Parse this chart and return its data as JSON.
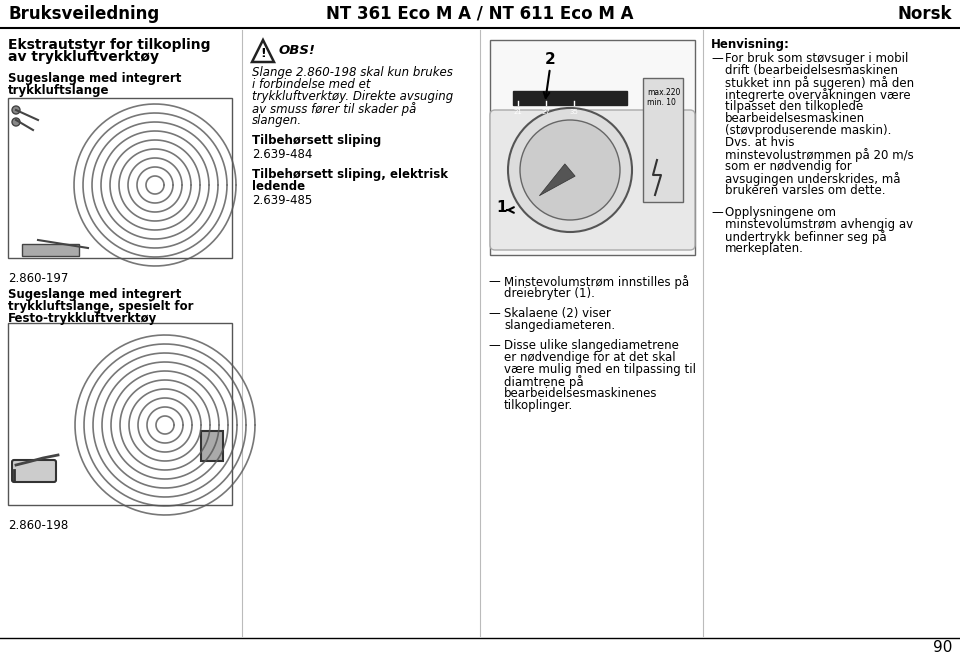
{
  "header_left": "Bruksveiledning",
  "header_center": "NT 361 Eco M A / NT 611 Eco M A",
  "header_right": "Norsk",
  "footer_page": "90",
  "col1_heading1": "Ekstrautstyr for tilkopling",
  "col1_heading2": "av trykkluftverktøy",
  "col1_sub1_1": "Sugeslange med integrert",
  "col1_sub1_2": "trykkluftslange",
  "col1_label1": "2.860-197",
  "col1_sub2_1": "Sugeslange med integrert",
  "col1_sub2_2": "trykkluftslange, spesielt for",
  "col1_sub2_3": "Festo-trykkluftverktøy",
  "col1_label2": "2.860-198",
  "col2_obs_title": "OBS!",
  "col2_obs_lines": [
    "Slange 2.860-198 skal kun brukes",
    "i forbindelse med et",
    "trykkluftverktøy. Direkte avsuging",
    "av smuss fører til skader på",
    "slangen."
  ],
  "col2_item1_bold": "Tilbehørsett sliping",
  "col2_item1_num": "2.639-484",
  "col2_item2_bold1": "Tilbehørsett sliping, elektrisk",
  "col2_item2_bold2": "ledende",
  "col2_item2_num": "2.639-485",
  "col3_bullet1_lines": [
    "Minstevolumstrøm innstilles på",
    "dreiebryter (1)."
  ],
  "col3_bullet2_lines": [
    "Skalaene (2) viser",
    "slangediameteren."
  ],
  "col3_bullet3_lines": [
    "Disse ulike slangediametrene",
    "er nødvendige for at det skal",
    "være mulig med en tilpassing til",
    "diamtrene på",
    "bearbeidelsesmaskinenes",
    "tilkoplinger."
  ],
  "col4_heading": "Henvisning:",
  "col4_b1_lines": [
    "For bruk som støvsuger i mobil",
    "drift (bearbeidelsesmaskinen",
    "stukket inn på sugeren) må den",
    "integrerte overvåkningen være",
    "tilpasset den tilkoplede",
    "bearbeidelsesmaskinen",
    "(støvproduserende maskin).",
    "Dvs. at hvis",
    "minstevolustrømmen på 20 m/s",
    "som er nødvendig for",
    "avsugingen underskrides, må",
    "brukeren varsles om dette."
  ],
  "col4_b2_lines": [
    "Opplysningene om",
    "minstevolumstrøm avhengig av",
    "undertrykk befinner seg på",
    "merkeplaten."
  ],
  "bg_color": "#ffffff",
  "text_color": "#000000"
}
